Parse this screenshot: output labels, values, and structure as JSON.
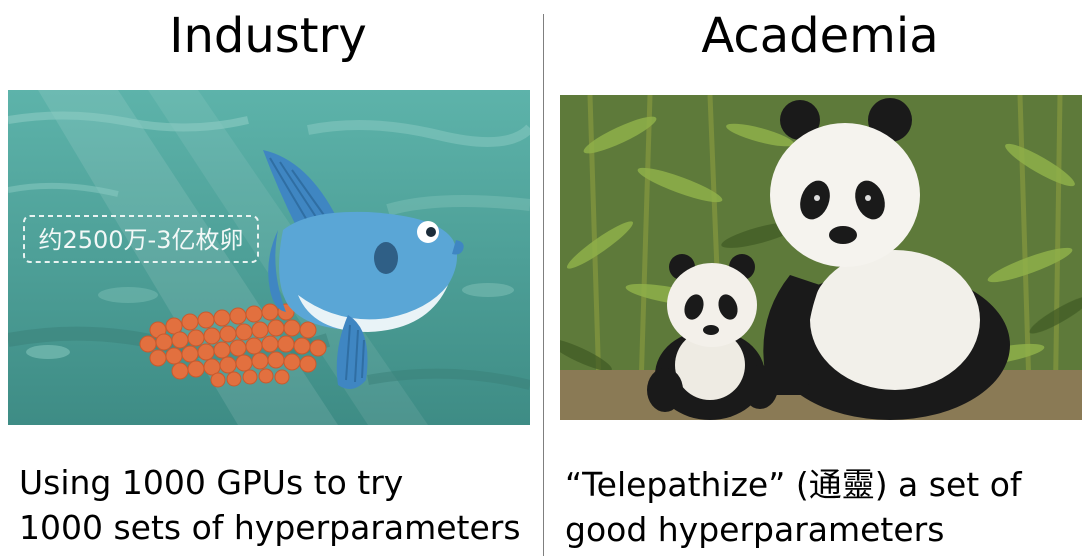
{
  "left": {
    "title": "Industry",
    "image_label": "约2500万-3亿枚卵",
    "caption_line1": "Using 1000 GPUs to try",
    "caption_line2": "1000 sets of hyperparameters"
  },
  "right": {
    "title": "Academia",
    "caption_line1": "“Telepathize” (通靈) a set of",
    "caption_line2": "good hyperparameters"
  },
  "colors": {
    "sea": "#4fa39a",
    "fish_body": "#5aa6d6",
    "eggs": "#e2703f",
    "divider": "#7f7f7f"
  }
}
